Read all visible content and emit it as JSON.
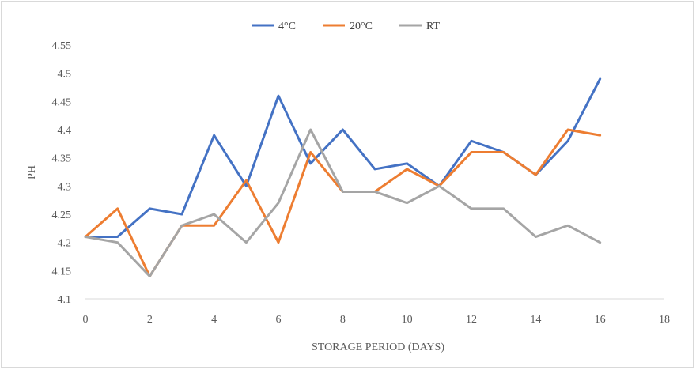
{
  "chart_data": {
    "type": "line",
    "xlabel": "STORAGE PERIOD (DAYS)",
    "ylabel": "PH",
    "xlim": [
      0,
      18
    ],
    "ylim": [
      4.1,
      4.55
    ],
    "x_ticks": [
      0,
      2,
      4,
      6,
      8,
      10,
      12,
      14,
      16,
      18
    ],
    "y_ticks": [
      "4.1",
      "4.15",
      "4.2",
      "4.25",
      "4.3",
      "4.35",
      "4.4",
      "4.45",
      "4.5",
      "4.55"
    ],
    "grid": false,
    "legend_position": "top-center",
    "x": [
      0,
      1,
      2,
      3,
      4,
      5,
      6,
      7,
      8,
      9,
      10,
      11,
      12,
      13,
      14,
      15,
      16
    ],
    "series": [
      {
        "name": "4°C",
        "color": "#4472c4",
        "values": [
          4.21,
          4.21,
          4.26,
          4.25,
          4.39,
          4.3,
          4.46,
          4.34,
          4.4,
          4.33,
          4.34,
          4.3,
          4.38,
          4.36,
          4.32,
          4.38,
          4.49
        ]
      },
      {
        "name": "20°C",
        "color": "#ed7d31",
        "values": [
          4.21,
          4.26,
          4.14,
          4.23,
          4.23,
          4.31,
          4.2,
          4.36,
          4.29,
          4.29,
          4.33,
          4.3,
          4.36,
          4.36,
          4.32,
          4.4,
          4.39
        ]
      },
      {
        "name": "RT",
        "color": "#a5a5a5",
        "values": [
          4.21,
          4.2,
          4.14,
          4.23,
          4.25,
          4.2,
          4.27,
          4.4,
          4.29,
          4.29,
          4.27,
          4.3,
          4.26,
          4.26,
          4.21,
          4.23,
          4.2
        ]
      }
    ]
  }
}
